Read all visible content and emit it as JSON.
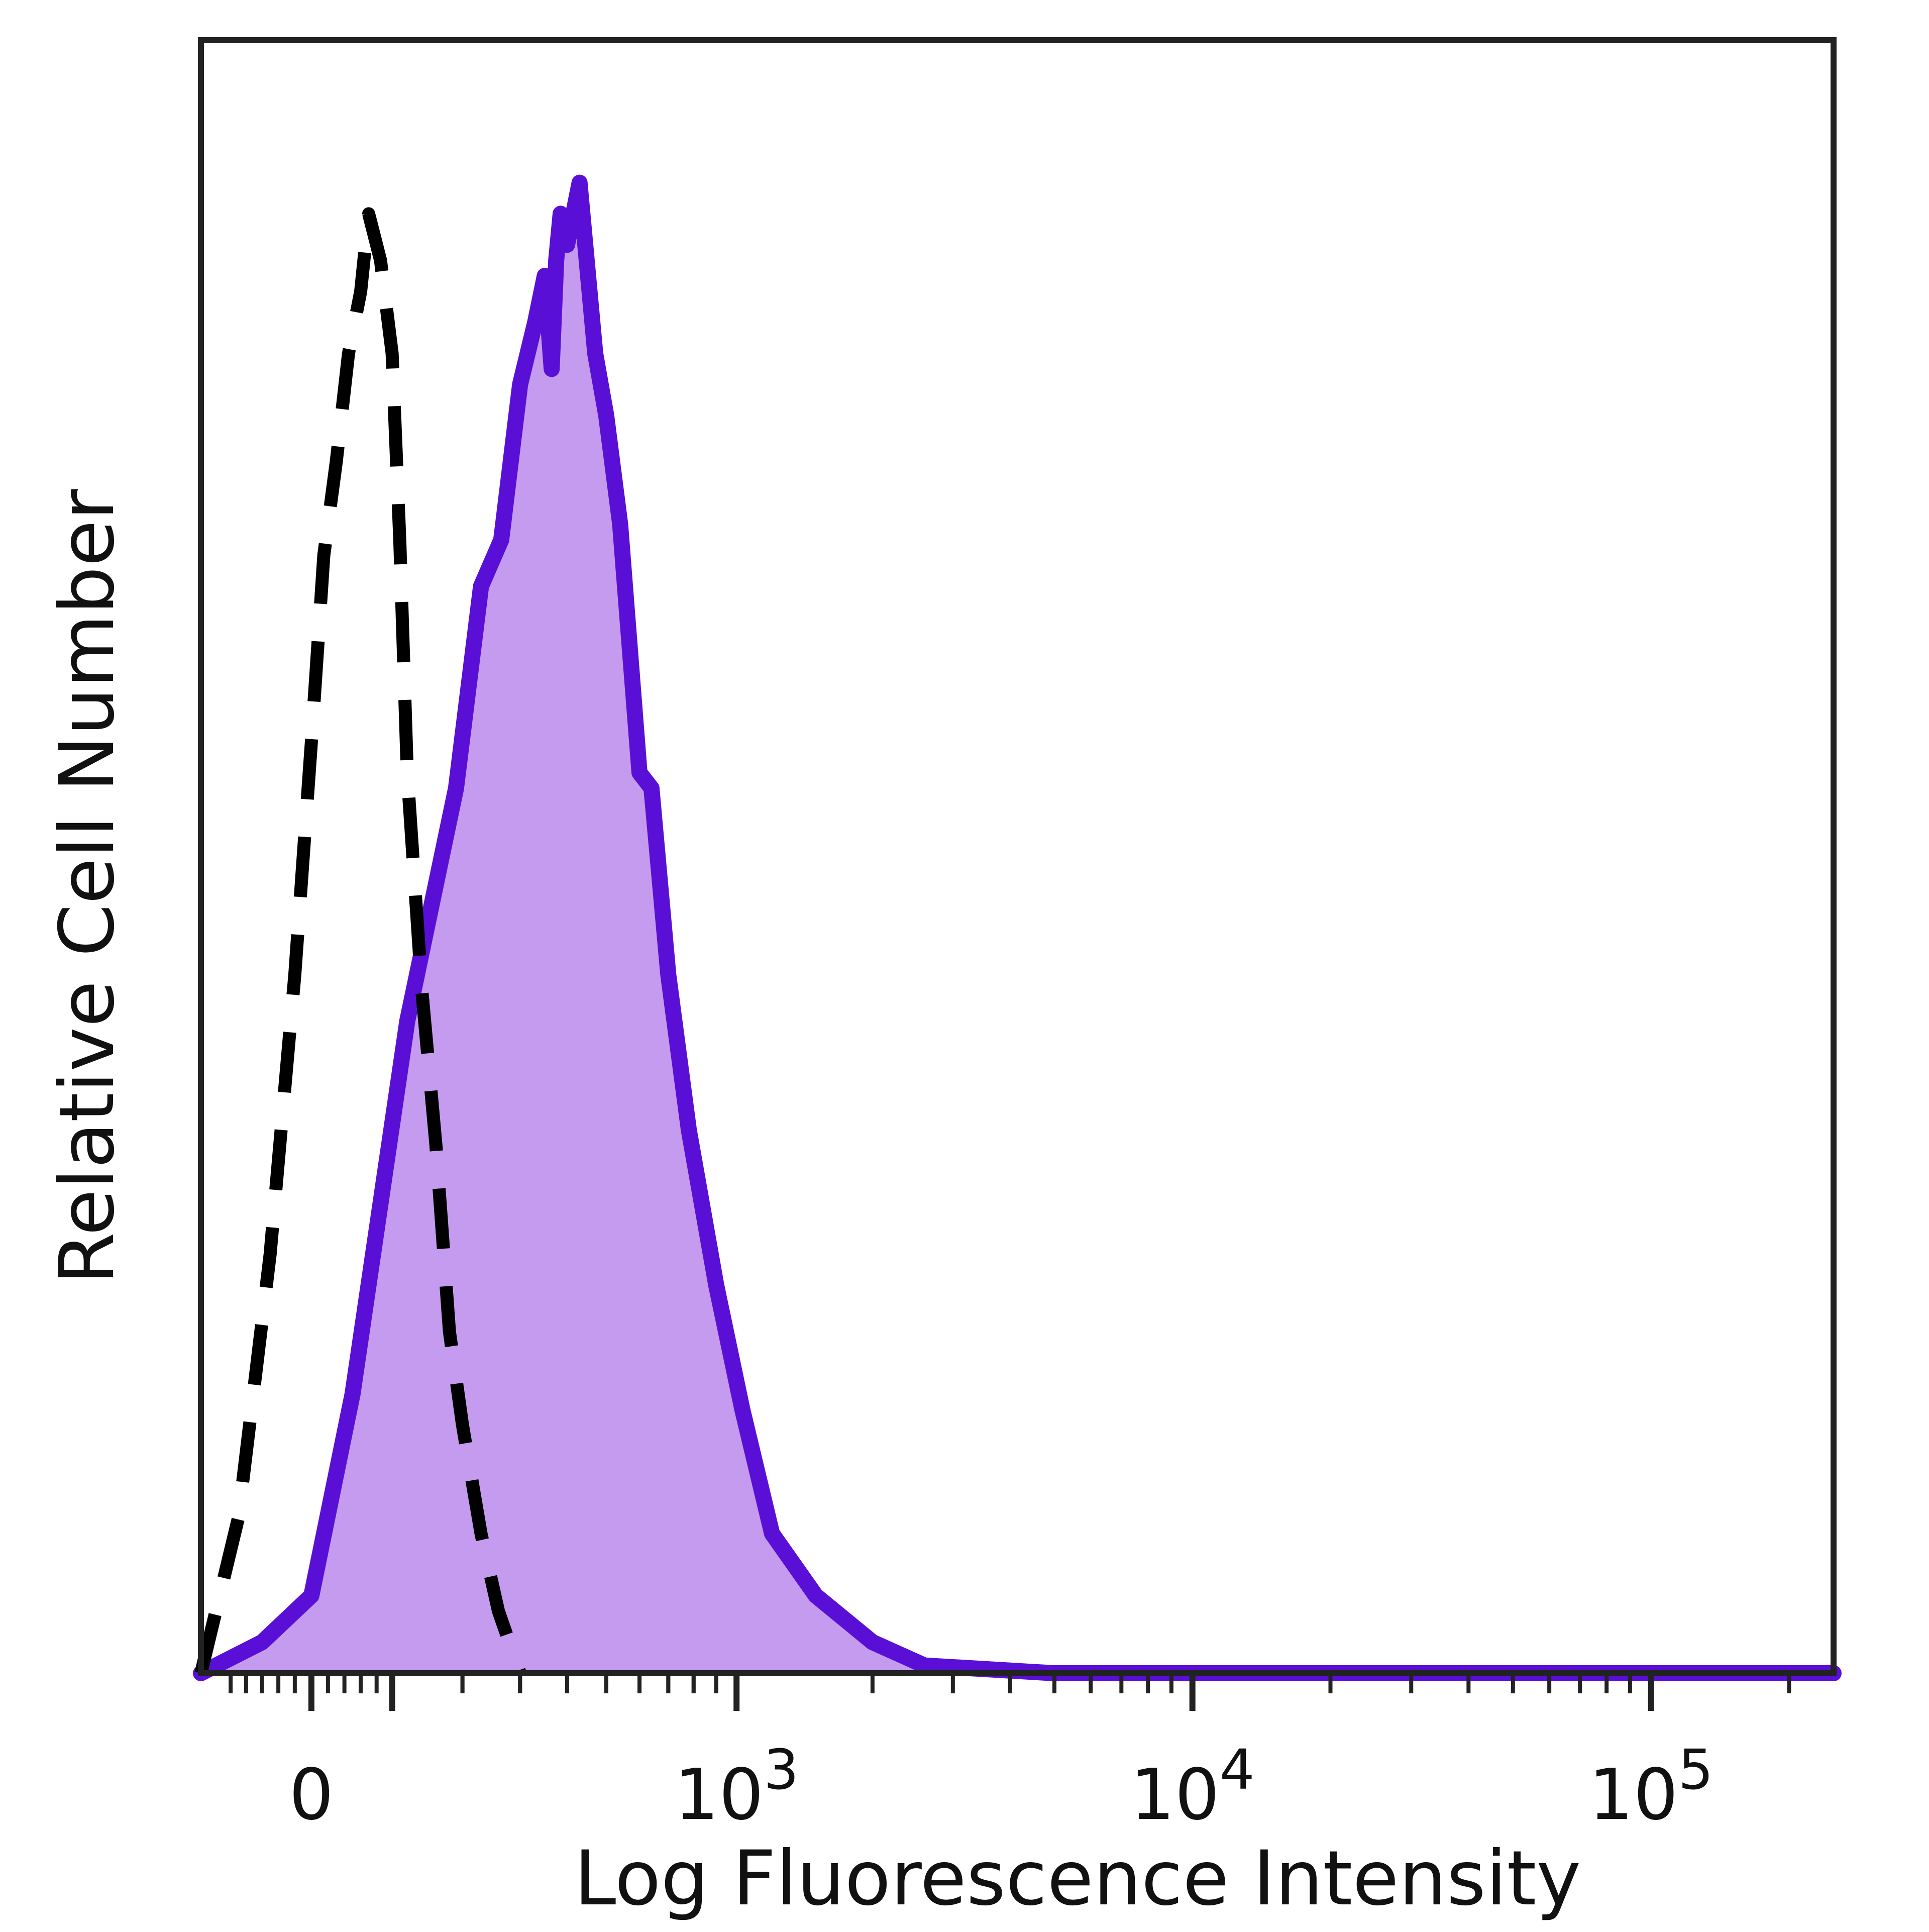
{
  "chart_data": {
    "type": "area",
    "title": "",
    "xlabel": "Log Fluorescence Intensity",
    "ylabel": "Relative Cell Number",
    "x_scale": "biexponential",
    "xlim": [
      -140,
      250000
    ],
    "ylim": [
      0,
      1
    ],
    "grid": false,
    "legend": "none",
    "x_ticks": [
      {
        "value": 0,
        "label": "0"
      },
      {
        "value": 1000,
        "label": "10",
        "sup": "3"
      },
      {
        "value": 10000,
        "label": "10",
        "sup": "4"
      },
      {
        "value": 100000,
        "label": "10",
        "sup": "5"
      }
    ],
    "colors": {
      "stained_fill": "#c49bee",
      "stained_line": "#5a0fd6",
      "control_line": "#000000"
    },
    "series": [
      {
        "style": "filled",
        "x": [
          -140,
          -60,
          0,
          50,
          120,
          190,
          230,
          265,
          300,
          330,
          350,
          365,
          375,
          385,
          400,
          430,
          470,
          500,
          540,
          600,
          640,
          700,
          780,
          900,
          1030,
          1200,
          1500,
          2000,
          2600,
          5000,
          20000,
          100000,
          250000
        ],
        "y": [
          0.0,
          0.02,
          0.05,
          0.18,
          0.42,
          0.57,
          0.7,
          0.73,
          0.83,
          0.87,
          0.9,
          0.84,
          0.91,
          0.94,
          0.92,
          0.96,
          0.85,
          0.81,
          0.74,
          0.58,
          0.57,
          0.45,
          0.35,
          0.25,
          0.17,
          0.09,
          0.05,
          0.02,
          0.005,
          0.0,
          0.0,
          0.0,
          0.0
        ]
      },
      {
        "style": "dashed",
        "x": [
          -140,
          -90,
          -50,
          -20,
          0,
          15,
          30,
          45,
          60,
          70,
          85,
          100,
          110,
          120,
          140,
          160,
          180,
          200,
          230,
          260,
          300
        ],
        "y": [
          0.0,
          0.1,
          0.27,
          0.45,
          0.6,
          0.72,
          0.78,
          0.85,
          0.89,
          0.94,
          0.91,
          0.85,
          0.73,
          0.58,
          0.44,
          0.34,
          0.22,
          0.16,
          0.09,
          0.04,
          0.0
        ]
      }
    ]
  }
}
